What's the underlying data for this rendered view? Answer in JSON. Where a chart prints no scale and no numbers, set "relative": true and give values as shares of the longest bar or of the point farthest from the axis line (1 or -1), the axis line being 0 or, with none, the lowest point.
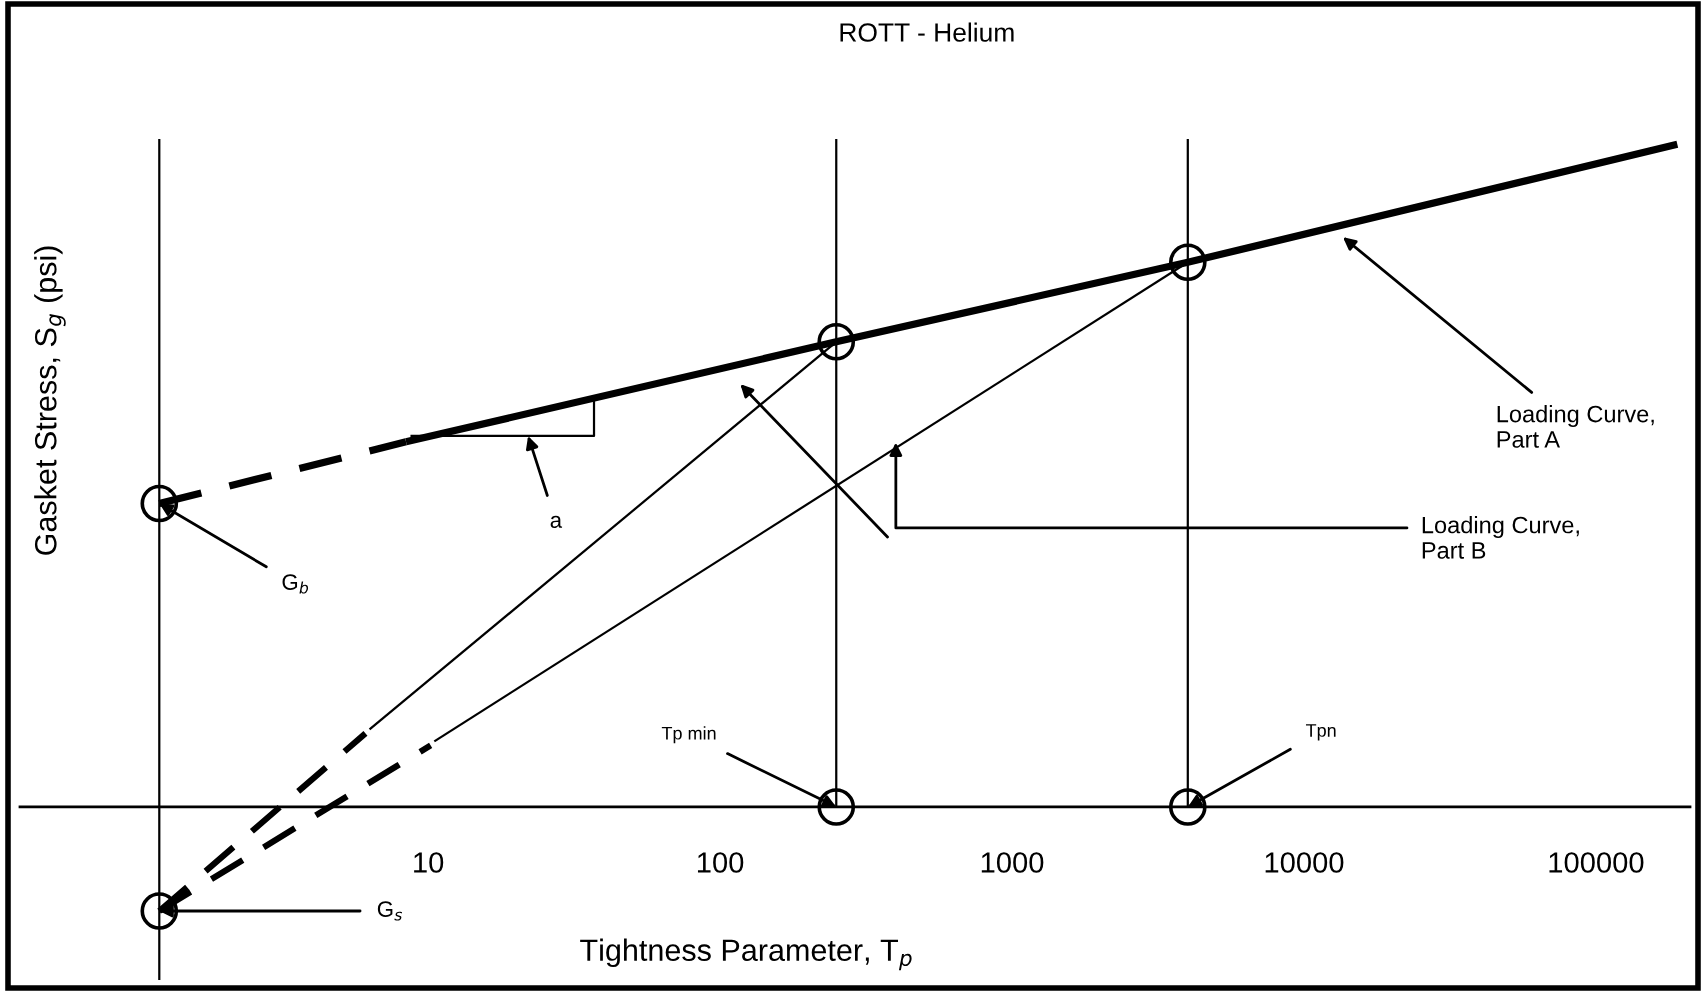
{
  "chart_data": {
    "type": "line",
    "title": "ROTT - Helium",
    "xlabel": "Tightness Parameter, T$_{p}$",
    "ylabel": "Gasket Stress, S$_{g}$ (psi)",
    "relative": true,
    "log": "x",
    "xlim": [
      0.4,
      210000
    ],
    "xticks": [
      10,
      100,
      1000,
      10000,
      100000
    ],
    "tick_labels": "x",
    "series": [
      {
        "color": "#000000",
        "line_style": "solid",
        "x": [
          8.4,
          250,
          4000,
          190000
        ],
        "values": [
          0.551,
          0.702,
          0.822,
          1.0
        ]
      },
      {
        "color": "#000000",
        "line_style": "dashed",
        "x": [
          1.2,
          8.4
        ],
        "values": [
          0.458,
          0.551
        ]
      },
      {
        "color": "#000000",
        "line_style": "dashed",
        "x": [
          1.2,
          6.1
        ],
        "values": [
          -0.157,
          0.111
        ]
      },
      {
        "color": "#000000",
        "line_style": "solid",
        "x": [
          6.3,
          250
        ],
        "values": [
          0.117,
          0.702
        ]
      },
      {
        "color": "#000000",
        "line_style": "dashed",
        "x": [
          1.2,
          10.2
        ],
        "values": [
          -0.157,
          0.093
        ]
      },
      {
        "color": "#000000",
        "line_style": "solid",
        "x": [
          10.5,
          4000
        ],
        "values": [
          0.099,
          0.822
        ]
      },
      {
        "color": "#000000",
        "line_style": "solid",
        "x": [
          8.7,
          37,
          37
        ],
        "values": [
          0.56,
          0.56,
          0.62
        ]
      },
      {
        "type": "scatter",
        "color": "#000000",
        "marker": "circle",
        "x": [
          1.2,
          1.2,
          250,
          4000,
          250,
          4000
        ],
        "values": [
          0.458,
          -0.157,
          0,
          0,
          0.702,
          0.822
        ]
      }
    ],
    "ref_lines": [
      {
        "axis": "x",
        "value": 1.2,
        "color": "#000000"
      },
      {
        "axis": "x",
        "value": 250,
        "color": "#000000"
      },
      {
        "axis": "x",
        "value": 4000,
        "color": "#000000"
      }
    ],
    "annotations": [
      {
        "text": "a",
        "x": 22,
        "y": 0.56
      },
      {
        "text": "G$_{b}$",
        "x": 1.2,
        "y": 0.458
      },
      {
        "text": "G$_{s}$",
        "x": 1.2,
        "y": -0.157
      },
      {
        "text": "Tp min",
        "x": 250,
        "y": 0
      },
      {
        "text": "Tpn",
        "x": 4000,
        "y": 0
      },
      {
        "text": "Loading Curve,\nPart A",
        "x": 13600,
        "y": 0.86
      },
      {
        "text": "Loading Curve,\nPart B",
        "x": 400,
        "y": 0.55
      }
    ]
  }
}
